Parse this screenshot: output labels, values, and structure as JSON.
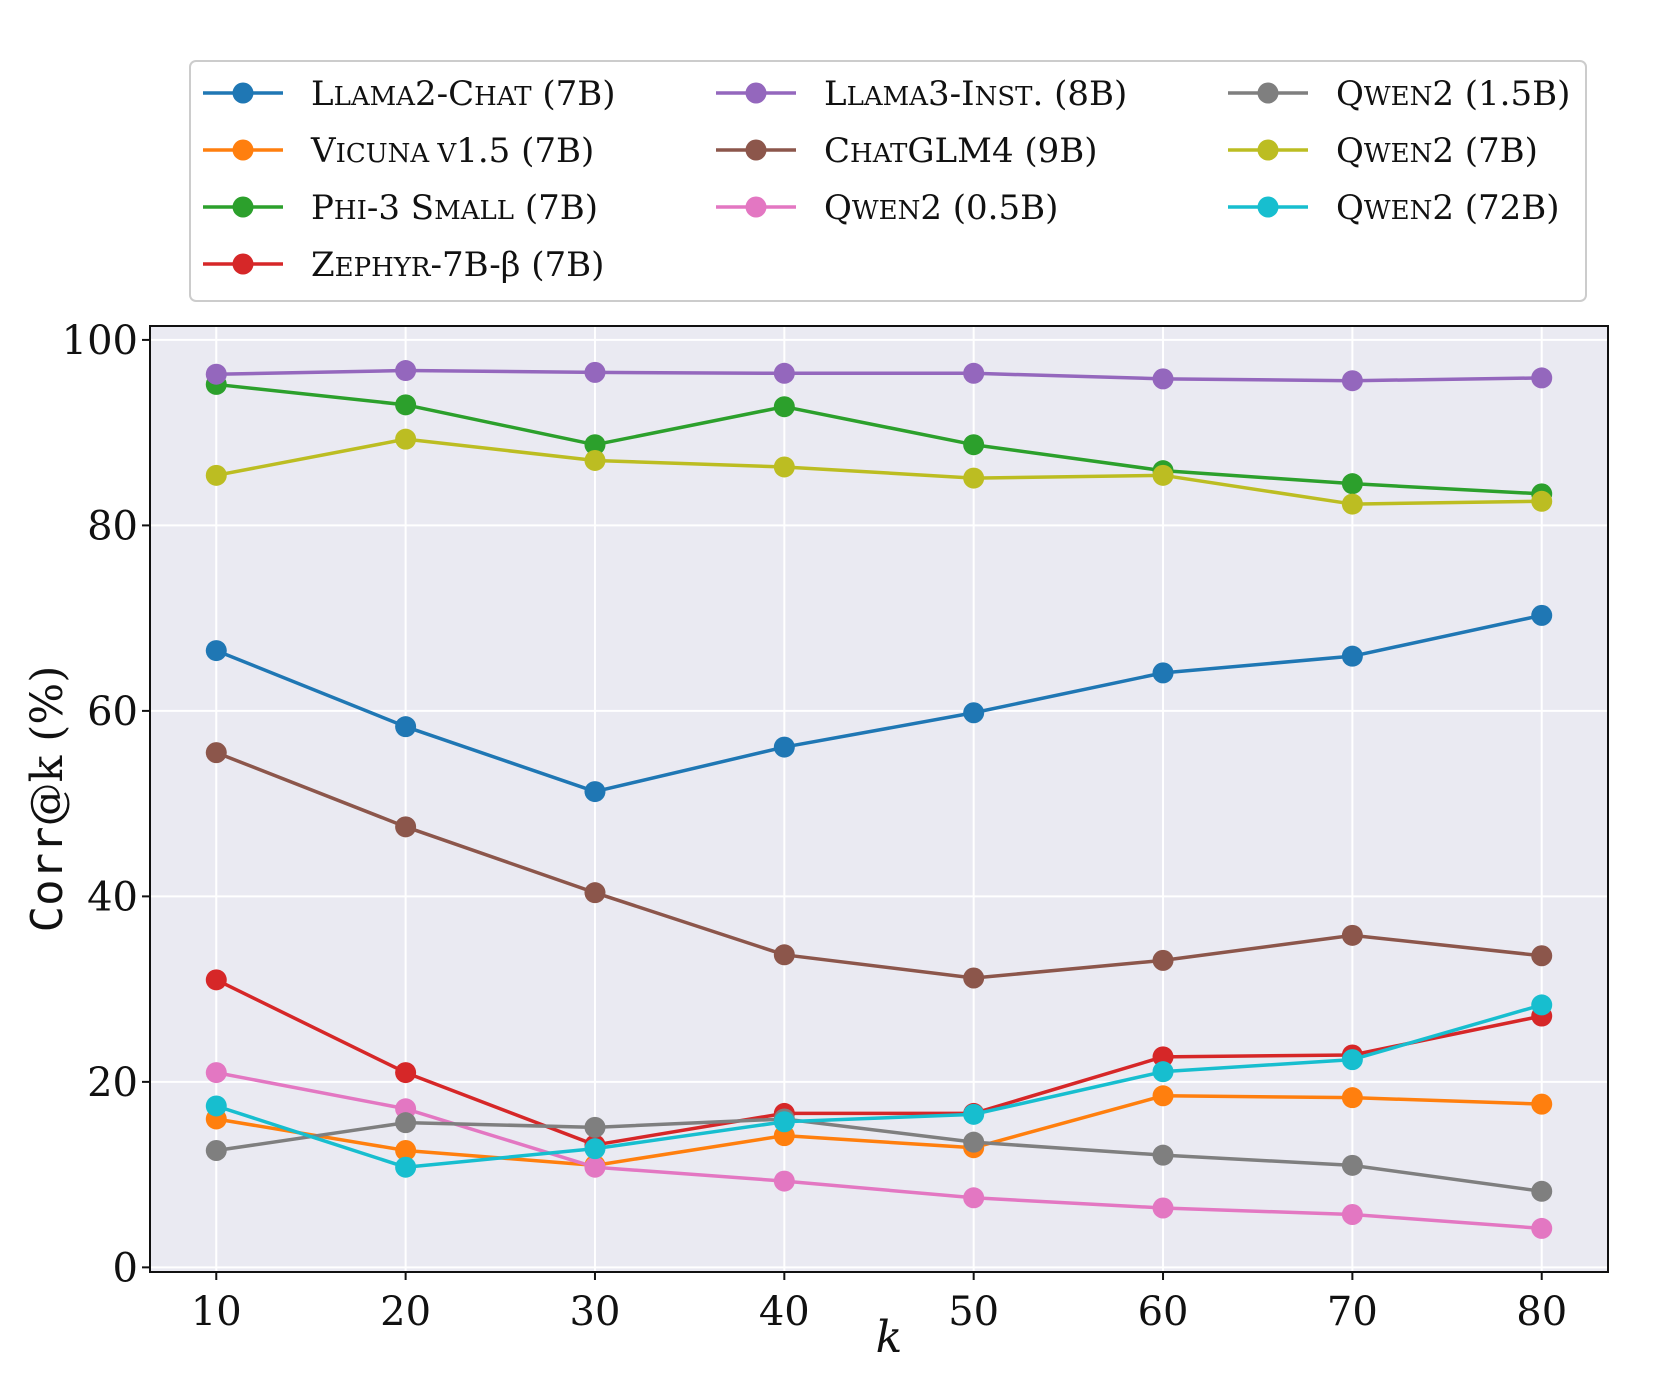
{
  "chart_data": {
    "type": "line",
    "x": [
      10,
      20,
      30,
      40,
      50,
      60,
      70,
      80
    ],
    "xlabel": "k",
    "ylabel": {
      "mono": "Corr",
      "rest": "@k (%)"
    },
    "xticks": [
      10,
      20,
      30,
      40,
      50,
      60,
      70,
      80
    ],
    "yticks": [
      0,
      20,
      40,
      60,
      80,
      100
    ],
    "xlim": [
      6.5,
      83.5
    ],
    "ylim": [
      -0.5,
      101.5
    ],
    "grid": true,
    "legend_placement": "top, outside plot, 3 columns",
    "series": [
      {
        "name": "Llama2-Chat (7B)",
        "color": "#1f77b4",
        "values": [
          66.5,
          58.3,
          51.3,
          56.1,
          59.8,
          64.1,
          65.9,
          70.3
        ]
      },
      {
        "name": "Vicuna v1.5 (7B)",
        "color": "#ff7f0e",
        "values": [
          16.0,
          12.6,
          11.0,
          14.2,
          12.9,
          18.5,
          18.3,
          17.6
        ]
      },
      {
        "name": "Phi-3 Small (7B)",
        "color": "#2ca02c",
        "values": [
          95.2,
          93.0,
          88.7,
          92.8,
          88.7,
          85.9,
          84.5,
          83.4
        ]
      },
      {
        "name": "Zephyr-7B-β (7B)",
        "color": "#d62728",
        "values": [
          31.0,
          21.0,
          13.2,
          16.6,
          16.6,
          22.7,
          22.9,
          27.1
        ]
      },
      {
        "name": "Llama3-Inst. (8B)",
        "color": "#9467bd",
        "values": [
          96.3,
          96.7,
          96.5,
          96.4,
          96.4,
          95.8,
          95.6,
          95.9
        ]
      },
      {
        "name": "ChatGLM4 (9B)",
        "color": "#8c564b",
        "values": [
          55.5,
          47.5,
          40.4,
          33.7,
          31.2,
          33.1,
          35.8,
          33.6
        ]
      },
      {
        "name": "Qwen2 (0.5B)",
        "color": "#e377c2",
        "values": [
          21.0,
          17.1,
          10.8,
          9.3,
          7.5,
          6.4,
          5.7,
          4.2
        ]
      },
      {
        "name": "Qwen2 (1.5B)",
        "color": "#7f7f7f",
        "values": [
          12.6,
          15.6,
          15.1,
          16.0,
          13.5,
          12.1,
          11.0,
          8.2
        ]
      },
      {
        "name": "Qwen2 (7B)",
        "color": "#bcbd22",
        "values": [
          85.4,
          89.3,
          87.0,
          86.3,
          85.1,
          85.4,
          82.3,
          82.6
        ]
      },
      {
        "name": "Qwen2 (72B)",
        "color": "#17becf",
        "values": [
          17.4,
          10.8,
          12.8,
          15.7,
          16.5,
          21.1,
          22.4,
          28.3
        ]
      }
    ],
    "legend_labels": [
      [
        {
          "t": "L",
          "sc": false
        },
        {
          "t": "LAMA",
          "sc": true
        },
        {
          "t": "2-C",
          "sc": false
        },
        {
          "t": "HAT",
          "sc": true
        },
        {
          "t": " (7B)",
          "sc": false
        }
      ],
      [
        {
          "t": "V",
          "sc": false
        },
        {
          "t": "ICUNA V",
          "sc": true
        },
        {
          "t": "1.5 (7B)",
          "sc": false
        }
      ],
      [
        {
          "t": "P",
          "sc": false
        },
        {
          "t": "HI",
          "sc": true
        },
        {
          "t": "-3 S",
          "sc": false
        },
        {
          "t": "MALL",
          "sc": true
        },
        {
          "t": " (7B)",
          "sc": false
        }
      ],
      [
        {
          "t": "Z",
          "sc": false
        },
        {
          "t": "EPHYR",
          "sc": true
        },
        {
          "t": "-7B-β (7B)",
          "sc": false
        }
      ],
      [
        {
          "t": "L",
          "sc": false
        },
        {
          "t": "LAMA",
          "sc": true
        },
        {
          "t": "3-I",
          "sc": false
        },
        {
          "t": "NST",
          "sc": true
        },
        {
          "t": ". (8B)",
          "sc": false
        }
      ],
      [
        {
          "t": "C",
          "sc": false
        },
        {
          "t": "HAT",
          "sc": true
        },
        {
          "t": "GLM4 (9B)",
          "sc": false
        }
      ],
      [
        {
          "t": "Q",
          "sc": false
        },
        {
          "t": "WEN",
          "sc": true
        },
        {
          "t": "2 (0.5B)",
          "sc": false
        }
      ],
      [
        {
          "t": "Q",
          "sc": false
        },
        {
          "t": "WEN",
          "sc": true
        },
        {
          "t": "2 (1.5B)",
          "sc": false
        }
      ],
      [
        {
          "t": "Q",
          "sc": false
        },
        {
          "t": "WEN",
          "sc": true
        },
        {
          "t": "2 (7B)",
          "sc": false
        }
      ],
      [
        {
          "t": "Q",
          "sc": false
        },
        {
          "t": "WEN",
          "sc": true
        },
        {
          "t": "2 (72B)",
          "sc": false
        }
      ]
    ]
  }
}
